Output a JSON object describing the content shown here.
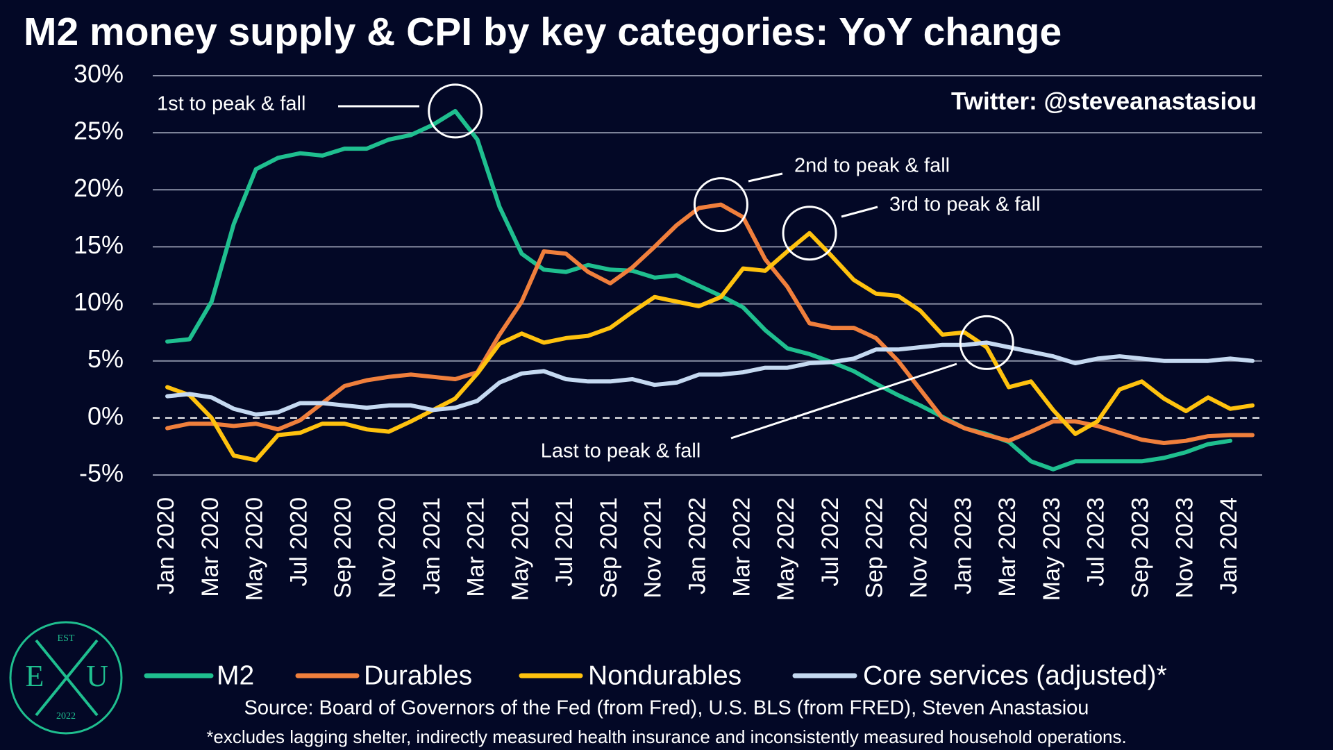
{
  "chart_data": {
    "type": "line",
    "title": "M2 money supply & CPI by key categories: YoY change",
    "watermark": "Twitter: @steveanastasiou",
    "source": "Source: Board of Governors of the Fed (from Fred), U.S. BLS (from FRED), Steven Anastasiou",
    "footnote": "*excludes lagging shelter, indirectly measured health insurance and inconsistently measured household operations.",
    "logo": {
      "top": "EST",
      "left": "E",
      "right": "U",
      "bottom": "2022"
    },
    "categories": [
      "Jan 2020",
      null,
      "Mar 2020",
      null,
      "May 2020",
      null,
      "Jul 2020",
      null,
      "Sep 2020",
      null,
      "Nov 2020",
      null,
      "Jan 2021",
      null,
      "Mar 2021",
      null,
      "May 2021",
      null,
      "Jul 2021",
      null,
      "Sep 2021",
      null,
      "Nov 2021",
      null,
      "Jan 2022",
      null,
      "Mar 2022",
      null,
      "May 2022",
      null,
      "Jul 2022",
      null,
      "Sep 2022",
      null,
      "Nov 2022",
      null,
      "Jan 2023",
      null,
      "Mar 2023",
      null,
      "May 2023",
      null,
      "Jul 2023",
      null,
      "Sep 2023",
      null,
      "Nov 2023",
      null,
      "Jan 2024",
      null
    ],
    "ylim": [
      -5,
      30
    ],
    "yticks": [
      {
        "value": -5,
        "label": "-5%"
      },
      {
        "value": 0,
        "label": "0%"
      },
      {
        "value": 5,
        "label": "5%"
      },
      {
        "value": 10,
        "label": "10%"
      },
      {
        "value": 15,
        "label": "15%"
      },
      {
        "value": 20,
        "label": "20%"
      },
      {
        "value": 25,
        "label": "25%"
      },
      {
        "value": 30,
        "label": "30%"
      }
    ],
    "grid": true,
    "series": [
      {
        "name": "M2",
        "color": "#1fbf8f",
        "values": [
          6.7,
          6.9,
          10.2,
          17.0,
          21.8,
          22.8,
          23.2,
          23.0,
          23.6,
          23.6,
          24.4,
          24.8,
          25.7,
          26.9,
          24.4,
          18.5,
          14.4,
          13.0,
          12.8,
          13.4,
          13.0,
          12.9,
          12.3,
          12.5,
          11.6,
          10.7,
          9.7,
          7.7,
          6.1,
          5.6,
          4.9,
          4.1,
          3.0,
          2.0,
          1.1,
          0.1,
          -0.9,
          -1.4,
          -2.1,
          -3.8,
          -4.5,
          -3.8,
          -3.8,
          -3.8,
          -3.8,
          -3.5,
          -3.0,
          -2.3,
          -2.0,
          null
        ]
      },
      {
        "name": "Durables",
        "color": "#f07f3c",
        "values": [
          -0.9,
          -0.5,
          -0.5,
          -0.7,
          -0.5,
          -1.0,
          -0.2,
          1.3,
          2.8,
          3.3,
          3.6,
          3.8,
          3.6,
          3.4,
          4.0,
          7.3,
          10.2,
          14.6,
          14.4,
          12.8,
          11.8,
          13.2,
          15.0,
          16.9,
          18.4,
          18.7,
          17.6,
          13.9,
          11.5,
          8.3,
          7.9,
          7.9,
          7.0,
          5.0,
          2.5,
          0.0,
          -0.9,
          -1.5,
          -2.0,
          -1.2,
          -0.3,
          -0.3,
          -0.7,
          -1.3,
          -1.9,
          -2.2,
          -2.0,
          -1.6,
          -1.5,
          -1.5
        ]
      },
      {
        "name": "Nondurables",
        "color": "#ffc20e",
        "values": [
          2.7,
          2.0,
          0.0,
          -3.3,
          -3.7,
          -1.5,
          -1.3,
          -0.5,
          -0.5,
          -1.0,
          -1.2,
          -0.3,
          0.7,
          1.7,
          3.9,
          6.5,
          7.4,
          6.6,
          7.0,
          7.2,
          7.9,
          9.3,
          10.6,
          10.2,
          9.8,
          10.6,
          13.1,
          12.9,
          14.6,
          16.2,
          14.2,
          12.1,
          10.9,
          10.7,
          9.4,
          7.3,
          7.5,
          6.2,
          2.7,
          3.2,
          0.7,
          -1.4,
          -0.3,
          2.5,
          3.2,
          1.7,
          0.6,
          1.8,
          0.8,
          1.1
        ]
      },
      {
        "name": "Core services (adjusted)*",
        "color": "#c5d9f1",
        "values": [
          1.9,
          2.1,
          1.8,
          0.8,
          0.3,
          0.5,
          1.3,
          1.3,
          1.1,
          0.9,
          1.1,
          1.1,
          0.7,
          0.9,
          1.5,
          3.1,
          3.9,
          4.1,
          3.4,
          3.2,
          3.2,
          3.4,
          2.9,
          3.1,
          3.8,
          3.8,
          4.0,
          4.4,
          4.4,
          4.8,
          4.9,
          5.2,
          6.0,
          6.0,
          6.2,
          6.4,
          6.4,
          6.6,
          6.2,
          5.8,
          5.4,
          4.8,
          5.2,
          5.4,
          5.2,
          5.0,
          5.0,
          5.0,
          5.2,
          5.0
        ]
      }
    ],
    "annotations": [
      "1st to peak & fall",
      "2nd to peak & fall",
      "3rd to peak & fall",
      "Last to peak & fall"
    ]
  }
}
